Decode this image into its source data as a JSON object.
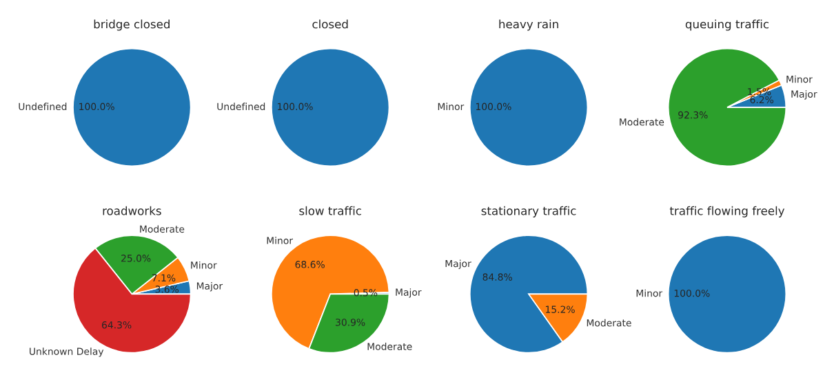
{
  "chart_data": [
    {
      "type": "pie",
      "title": "bridge closed",
      "categories": [
        "Undefined"
      ],
      "values": [
        100
      ],
      "colors": [
        "#1f77b4"
      ],
      "value_labels": [
        "100.0%"
      ]
    },
    {
      "type": "pie",
      "title": "closed",
      "categories": [
        "Undefined"
      ],
      "values": [
        100
      ],
      "colors": [
        "#1f77b4"
      ],
      "value_labels": [
        "100.0%"
      ]
    },
    {
      "type": "pie",
      "title": "heavy rain",
      "categories": [
        "Minor"
      ],
      "values": [
        100
      ],
      "colors": [
        "#1f77b4"
      ],
      "value_labels": [
        "100.0%"
      ]
    },
    {
      "type": "pie",
      "title": "queuing traffic",
      "categories": [
        "Major",
        "Minor",
        "Moderate"
      ],
      "values": [
        6.2,
        1.5,
        92.3
      ],
      "colors": [
        "#1f77b4",
        "#ff7f0e",
        "#2ca02c"
      ],
      "value_labels": [
        "6.2%",
        "1.5%",
        "92.3%"
      ]
    },
    {
      "type": "pie",
      "title": "roadworks",
      "categories": [
        "Major",
        "Minor",
        "Moderate",
        "Unknown Delay"
      ],
      "values": [
        3.6,
        7.1,
        25.0,
        64.3
      ],
      "colors": [
        "#1f77b4",
        "#ff7f0e",
        "#2ca02c",
        "#d62728"
      ],
      "value_labels": [
        "3.6%",
        "7.1%",
        "25.0%",
        "64.3%"
      ]
    },
    {
      "type": "pie",
      "title": "slow traffic",
      "categories": [
        "Major",
        "Minor",
        "Moderate"
      ],
      "values": [
        0.5,
        68.6,
        30.9
      ],
      "colors": [
        "#1f77b4",
        "#ff7f0e",
        "#2ca02c"
      ],
      "value_labels": [
        "0.5%",
        "68.6%",
        "30.9%"
      ]
    },
    {
      "type": "pie",
      "title": "stationary traffic",
      "categories": [
        "Major",
        "Moderate"
      ],
      "values": [
        84.8,
        15.2
      ],
      "colors": [
        "#1f77b4",
        "#ff7f0e"
      ],
      "value_labels": [
        "84.8%",
        "15.2%"
      ]
    },
    {
      "type": "pie",
      "title": "traffic flowing freely",
      "categories": [
        "Minor"
      ],
      "values": [
        100
      ],
      "colors": [
        "#1f77b4"
      ],
      "value_labels": [
        "100.0%"
      ]
    }
  ]
}
